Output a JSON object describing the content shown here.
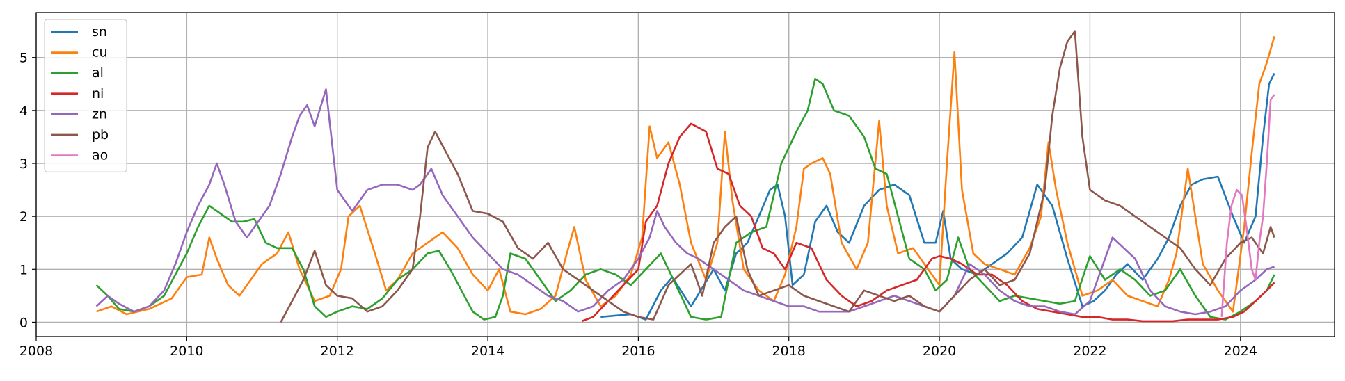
{
  "chart_data": {
    "type": "line",
    "title": "",
    "xlabel": "",
    "ylabel": "",
    "xlim": [
      2008.0,
      2025.25
    ],
    "ylim": [
      -0.27,
      5.85
    ],
    "grid": true,
    "legend_position": "top-left",
    "x_ticks": [
      {
        "value": 2008,
        "label": "2008"
      },
      {
        "value": 2010,
        "label": "2010"
      },
      {
        "value": 2012,
        "label": "2012"
      },
      {
        "value": 2014,
        "label": "2014"
      },
      {
        "value": 2016,
        "label": "2016"
      },
      {
        "value": 2018,
        "label": "2018"
      },
      {
        "value": 2020,
        "label": "2020"
      },
      {
        "value": 2022,
        "label": "2022"
      },
      {
        "value": 2024,
        "label": "2024"
      }
    ],
    "y_ticks": [
      {
        "value": 0,
        "label": "0"
      },
      {
        "value": 1,
        "label": "1"
      },
      {
        "value": 2,
        "label": "2"
      },
      {
        "value": 3,
        "label": "3"
      },
      {
        "value": 4,
        "label": "4"
      },
      {
        "value": 5,
        "label": "5"
      }
    ],
    "series": [
      {
        "name": "sn",
        "color": "#1f77b4",
        "x": [
          2015.5,
          2015.9,
          2016.1,
          2016.3,
          2016.45,
          2016.7,
          2017.0,
          2017.15,
          2017.3,
          2017.45,
          2017.6,
          2017.75,
          2017.85,
          2017.95,
          2018.05,
          2018.2,
          2018.35,
          2018.5,
          2018.65,
          2018.8,
          2019.0,
          2019.2,
          2019.4,
          2019.6,
          2019.8,
          2019.95,
          2020.05,
          2020.15,
          2020.3,
          2020.5,
          2020.7,
          2020.9,
          2021.1,
          2021.3,
          2021.5,
          2021.7,
          2021.9,
          2022.05,
          2022.2,
          2022.35,
          2022.5,
          2022.7,
          2022.9,
          2023.05,
          2023.2,
          2023.35,
          2023.5,
          2023.7,
          2023.9,
          2024.05,
          2024.2,
          2024.3,
          2024.38,
          2024.45
        ],
        "y": [
          0.1,
          0.15,
          0.05,
          0.6,
          0.85,
          0.3,
          1.0,
          0.6,
          1.3,
          1.5,
          2.0,
          2.5,
          2.6,
          2.0,
          0.7,
          0.9,
          1.9,
          2.2,
          1.7,
          1.5,
          2.2,
          2.5,
          2.6,
          2.4,
          1.5,
          1.5,
          2.1,
          1.2,
          1.0,
          0.9,
          1.1,
          1.3,
          1.6,
          2.6,
          2.2,
          1.2,
          0.3,
          0.4,
          0.6,
          0.9,
          1.1,
          0.8,
          1.2,
          1.6,
          2.2,
          2.6,
          2.7,
          2.75,
          2.0,
          1.5,
          2.0,
          3.5,
          4.5,
          4.7
        ]
      },
      {
        "name": "cu",
        "color": "#ff7f0e",
        "x": [
          2008.8,
          2009.0,
          2009.2,
          2009.5,
          2009.8,
          2010.0,
          2010.2,
          2010.3,
          2010.4,
          2010.55,
          2010.7,
          2010.85,
          2011.0,
          2011.2,
          2011.35,
          2011.5,
          2011.7,
          2011.9,
          2012.05,
          2012.15,
          2012.3,
          2012.5,
          2012.65,
          2012.8,
          2013.0,
          2013.2,
          2013.4,
          2013.6,
          2013.8,
          2014.0,
          2014.15,
          2014.3,
          2014.5,
          2014.7,
          2014.9,
          2015.05,
          2015.15,
          2015.3,
          2015.5,
          2015.7,
          2015.9,
          2016.05,
          2016.15,
          2016.25,
          2016.4,
          2016.55,
          2016.7,
          2016.9,
          2017.05,
          2017.15,
          2017.25,
          2017.4,
          2017.6,
          2017.8,
          2017.95,
          2018.1,
          2018.2,
          2018.3,
          2018.45,
          2018.55,
          2018.7,
          2018.9,
          2019.05,
          2019.2,
          2019.3,
          2019.45,
          2019.65,
          2019.85,
          2020.0,
          2020.1,
          2020.2,
          2020.3,
          2020.45,
          2020.6,
          2020.8,
          2021.0,
          2021.2,
          2021.35,
          2021.45,
          2021.55,
          2021.7,
          2021.9,
          2022.1,
          2022.3,
          2022.5,
          2022.7,
          2022.9,
          2023.05,
          2023.15,
          2023.3,
          2023.5,
          2023.7,
          2023.9,
          2024.05,
          2024.15,
          2024.25,
          2024.35,
          2024.45
        ],
        "y": [
          0.2,
          0.3,
          0.15,
          0.25,
          0.45,
          0.85,
          0.9,
          1.6,
          1.2,
          0.7,
          0.5,
          0.8,
          1.1,
          1.3,
          1.7,
          1.0,
          0.4,
          0.5,
          1.0,
          2.0,
          2.2,
          1.3,
          0.6,
          0.8,
          1.3,
          1.5,
          1.7,
          1.4,
          0.9,
          0.6,
          1.0,
          0.2,
          0.15,
          0.25,
          0.5,
          1.3,
          1.8,
          0.8,
          0.3,
          0.5,
          0.9,
          1.6,
          3.7,
          3.1,
          3.4,
          2.6,
          1.5,
          0.8,
          1.5,
          3.6,
          2.3,
          1.0,
          0.6,
          0.4,
          0.9,
          1.8,
          2.9,
          3.0,
          3.1,
          2.8,
          1.5,
          1.0,
          1.5,
          3.8,
          2.2,
          1.3,
          1.4,
          1.0,
          0.7,
          3.0,
          5.1,
          2.5,
          1.3,
          1.1,
          1.0,
          0.9,
          1.4,
          2.0,
          3.4,
          2.5,
          1.5,
          0.5,
          0.6,
          0.8,
          0.5,
          0.4,
          0.3,
          0.8,
          1.3,
          2.9,
          1.1,
          0.6,
          0.2,
          1.8,
          3.2,
          4.5,
          4.9,
          5.4
        ]
      },
      {
        "name": "al",
        "color": "#2ca02c",
        "x": [
          2008.8,
          2008.95,
          2009.1,
          2009.3,
          2009.5,
          2009.7,
          2009.85,
          2010.0,
          2010.15,
          2010.3,
          2010.45,
          2010.6,
          2010.75,
          2010.9,
          2011.05,
          2011.2,
          2011.4,
          2011.55,
          2011.7,
          2011.85,
          2012.0,
          2012.2,
          2012.4,
          2012.6,
          2012.8,
          2013.0,
          2013.2,
          2013.35,
          2013.5,
          2013.65,
          2013.8,
          2013.95,
          2014.1,
          2014.2,
          2014.3,
          2014.5,
          2014.7,
          2014.9,
          2015.1,
          2015.3,
          2015.5,
          2015.7,
          2015.9,
          2016.1,
          2016.3,
          2016.5,
          2016.7,
          2016.9,
          2017.1,
          2017.3,
          2017.5,
          2017.7,
          2017.9,
          2018.1,
          2018.25,
          2018.35,
          2018.45,
          2018.6,
          2018.8,
          2019.0,
          2019.15,
          2019.3,
          2019.45,
          2019.6,
          2019.8,
          2019.95,
          2020.1,
          2020.25,
          2020.4,
          2020.6,
          2020.8,
          2021.0,
          2021.2,
          2021.4,
          2021.6,
          2021.8,
          2022.0,
          2022.2,
          2022.4,
          2022.6,
          2022.8,
          2023.0,
          2023.2,
          2023.4,
          2023.6,
          2023.8,
          2024.0,
          2024.2,
          2024.35,
          2024.45
        ],
        "y": [
          0.7,
          0.5,
          0.25,
          0.2,
          0.3,
          0.5,
          0.9,
          1.3,
          1.8,
          2.2,
          2.05,
          1.9,
          1.9,
          1.95,
          1.5,
          1.4,
          1.4,
          1.0,
          0.3,
          0.1,
          0.2,
          0.3,
          0.25,
          0.45,
          0.8,
          1.0,
          1.3,
          1.35,
          1.0,
          0.6,
          0.2,
          0.05,
          0.1,
          0.5,
          1.3,
          1.2,
          0.8,
          0.4,
          0.6,
          0.9,
          1.0,
          0.9,
          0.7,
          1.0,
          1.3,
          0.7,
          0.1,
          0.05,
          0.1,
          1.5,
          1.7,
          1.8,
          3.0,
          3.6,
          4.0,
          4.6,
          4.5,
          4.0,
          3.9,
          3.5,
          2.9,
          2.8,
          2.0,
          1.2,
          1.0,
          0.6,
          0.8,
          1.6,
          1.0,
          0.7,
          0.4,
          0.5,
          0.45,
          0.4,
          0.35,
          0.4,
          1.25,
          0.8,
          1.0,
          0.8,
          0.5,
          0.6,
          1.0,
          0.5,
          0.1,
          0.05,
          0.2,
          0.4,
          0.6,
          0.9
        ]
      },
      {
        "name": "ni",
        "color": "#d62728",
        "x": [
          2015.25,
          2015.4,
          2015.6,
          2015.8,
          2016.0,
          2016.1,
          2016.25,
          2016.4,
          2016.55,
          2016.7,
          2016.9,
          2017.05,
          2017.2,
          2017.35,
          2017.5,
          2017.65,
          2017.8,
          2017.95,
          2018.1,
          2018.3,
          2018.5,
          2018.7,
          2018.9,
          2019.1,
          2019.3,
          2019.5,
          2019.7,
          2019.9,
          2020.0,
          2020.15,
          2020.3,
          2020.5,
          2020.7,
          2020.9,
          2021.1,
          2021.3,
          2021.5,
          2021.7,
          2021.9,
          2022.1,
          2022.3,
          2022.5,
          2022.7,
          2022.9,
          2023.1,
          2023.3,
          2023.5,
          2023.7,
          2023.9,
          2024.05,
          2024.2,
          2024.35,
          2024.45
        ],
        "y": [
          0.02,
          0.1,
          0.4,
          0.7,
          1.0,
          1.9,
          2.2,
          3.0,
          3.5,
          3.75,
          3.6,
          2.9,
          2.8,
          2.2,
          2.0,
          1.4,
          1.3,
          1.0,
          1.5,
          1.4,
          0.8,
          0.5,
          0.3,
          0.4,
          0.6,
          0.7,
          0.8,
          1.2,
          1.25,
          1.2,
          1.1,
          0.9,
          0.9,
          0.7,
          0.4,
          0.25,
          0.2,
          0.15,
          0.1,
          0.1,
          0.05,
          0.05,
          0.02,
          0.02,
          0.02,
          0.05,
          0.05,
          0.05,
          0.1,
          0.2,
          0.4,
          0.6,
          0.75
        ]
      },
      {
        "name": "zn",
        "color": "#9467bd",
        "x": [
          2008.8,
          2008.95,
          2009.1,
          2009.3,
          2009.5,
          2009.7,
          2009.85,
          2010.0,
          2010.15,
          2010.3,
          2010.4,
          2010.5,
          2010.65,
          2010.8,
          2010.95,
          2011.1,
          2011.25,
          2011.4,
          2011.5,
          2011.6,
          2011.7,
          2011.85,
          2012.0,
          2012.2,
          2012.4,
          2012.6,
          2012.8,
          2013.0,
          2013.1,
          2013.25,
          2013.4,
          2013.6,
          2013.8,
          2014.0,
          2014.2,
          2014.4,
          2014.6,
          2014.8,
          2015.0,
          2015.2,
          2015.4,
          2015.6,
          2015.8,
          2016.0,
          2016.15,
          2016.25,
          2016.35,
          2016.5,
          2016.65,
          2016.8,
          2017.0,
          2017.2,
          2017.4,
          2017.6,
          2017.8,
          2018.0,
          2018.2,
          2018.4,
          2018.6,
          2018.8,
          2019.0,
          2019.2,
          2019.4,
          2019.6,
          2019.8,
          2020.0,
          2020.2,
          2020.4,
          2020.6,
          2020.8,
          2021.0,
          2021.2,
          2021.4,
          2021.6,
          2021.8,
          2022.0,
          2022.15,
          2022.3,
          2022.45,
          2022.6,
          2022.8,
          2023.0,
          2023.2,
          2023.4,
          2023.6,
          2023.8,
          2024.0,
          2024.2,
          2024.35,
          2024.45
        ],
        "y": [
          0.3,
          0.5,
          0.35,
          0.2,
          0.3,
          0.6,
          1.1,
          1.7,
          2.2,
          2.6,
          3.0,
          2.6,
          1.9,
          1.6,
          1.9,
          2.2,
          2.8,
          3.5,
          3.9,
          4.1,
          3.7,
          4.4,
          2.5,
          2.1,
          2.5,
          2.6,
          2.6,
          2.5,
          2.6,
          2.9,
          2.4,
          2.0,
          1.6,
          1.3,
          1.0,
          0.9,
          0.7,
          0.5,
          0.4,
          0.2,
          0.3,
          0.6,
          0.8,
          1.2,
          1.6,
          2.1,
          1.8,
          1.5,
          1.3,
          1.2,
          1.0,
          0.8,
          0.6,
          0.5,
          0.4,
          0.3,
          0.3,
          0.2,
          0.2,
          0.2,
          0.3,
          0.4,
          0.5,
          0.4,
          0.3,
          0.2,
          0.5,
          1.1,
          0.9,
          0.6,
          0.4,
          0.3,
          0.3,
          0.2,
          0.15,
          0.4,
          1.0,
          1.6,
          1.4,
          1.2,
          0.6,
          0.3,
          0.2,
          0.15,
          0.2,
          0.3,
          0.6,
          0.8,
          1.0,
          1.05
        ]
      },
      {
        "name": "pb",
        "color": "#8c564b",
        "x": [
          2011.25,
          2011.4,
          2011.55,
          2011.7,
          2011.85,
          2012.0,
          2012.2,
          2012.4,
          2012.6,
          2012.8,
          2013.0,
          2013.1,
          2013.2,
          2013.3,
          2013.45,
          2013.6,
          2013.8,
          2014.0,
          2014.2,
          2014.4,
          2014.6,
          2014.8,
          2015.0,
          2015.2,
          2015.4,
          2015.6,
          2015.8,
          2016.0,
          2016.2,
          2016.4,
          2016.55,
          2016.7,
          2016.85,
          2017.0,
          2017.15,
          2017.3,
          2017.45,
          2017.6,
          2017.8,
          2018.0,
          2018.2,
          2018.4,
          2018.6,
          2018.8,
          2019.0,
          2019.2,
          2019.4,
          2019.6,
          2019.8,
          2020.0,
          2020.2,
          2020.4,
          2020.6,
          2020.8,
          2021.0,
          2021.2,
          2021.4,
          2021.5,
          2021.6,
          2021.7,
          2021.8,
          2021.9,
          2022.0,
          2022.2,
          2022.4,
          2022.6,
          2022.8,
          2023.0,
          2023.2,
          2023.4,
          2023.6,
          2023.8,
          2024.0,
          2024.15,
          2024.3,
          2024.4,
          2024.45
        ],
        "y": [
          0.0,
          0.4,
          0.8,
          1.35,
          0.7,
          0.5,
          0.45,
          0.2,
          0.3,
          0.6,
          1.0,
          2.0,
          3.3,
          3.6,
          3.2,
          2.8,
          2.1,
          2.05,
          1.9,
          1.4,
          1.2,
          1.5,
          1.0,
          0.8,
          0.6,
          0.4,
          0.2,
          0.1,
          0.05,
          0.7,
          0.9,
          1.1,
          0.5,
          1.5,
          1.8,
          2.0,
          1.0,
          0.5,
          0.6,
          0.7,
          0.5,
          0.4,
          0.3,
          0.2,
          0.6,
          0.5,
          0.4,
          0.5,
          0.3,
          0.2,
          0.5,
          0.8,
          1.0,
          0.7,
          0.8,
          1.3,
          2.5,
          3.9,
          4.8,
          5.3,
          5.5,
          3.5,
          2.5,
          2.3,
          2.2,
          2.0,
          1.8,
          1.6,
          1.4,
          1.0,
          0.7,
          1.2,
          1.5,
          1.6,
          1.3,
          1.8,
          1.6
        ]
      },
      {
        "name": "ao",
        "color": "#e377c2",
        "x": [
          2023.75,
          2023.82,
          2023.88,
          2023.95,
          2024.02,
          2024.08,
          2024.15,
          2024.2,
          2024.25,
          2024.3,
          2024.35,
          2024.4,
          2024.45
        ],
        "y": [
          0.1,
          1.5,
          2.2,
          2.5,
          2.4,
          1.8,
          1.0,
          0.8,
          1.5,
          2.0,
          3.0,
          4.2,
          4.3
        ]
      }
    ]
  }
}
